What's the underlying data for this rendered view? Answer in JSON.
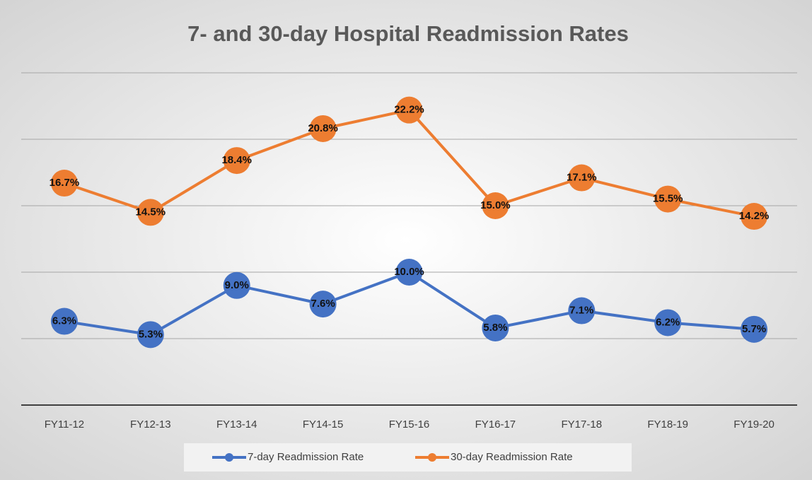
{
  "chart_data": {
    "type": "line",
    "title": "7- and 30-day Hospital Readmission Rates",
    "categories": [
      "FY11-12",
      "FY12-13",
      "FY13-14",
      "FY14-15",
      "FY15-16",
      "FY16-17",
      "FY17-18",
      "FY18-19",
      "FY19-20"
    ],
    "series": [
      {
        "name": "7-day Readmission Rate",
        "color": "#4472c4",
        "values": [
          6.3,
          5.3,
          9.0,
          7.6,
          10.0,
          5.8,
          7.1,
          6.2,
          5.7
        ],
        "value_labels": [
          "6.3%",
          "5.3%",
          "9.0%",
          "7.6%",
          "10.0%",
          "5.8%",
          "7.1%",
          "6.2%",
          "5.7%"
        ]
      },
      {
        "name": "30-day Readmission Rate",
        "color": "#ed7d31",
        "values": [
          16.7,
          14.5,
          18.4,
          20.8,
          22.2,
          15.0,
          17.1,
          15.5,
          14.2
        ],
        "value_labels": [
          "16.7%",
          "14.5%",
          "18.4%",
          "20.8%",
          "22.2%",
          "15.0%",
          "17.1%",
          "15.5%",
          "14.2%"
        ]
      }
    ],
    "ylim": [
      0,
      25
    ],
    "yticks": [
      0,
      5,
      10,
      15,
      20,
      25
    ],
    "grid": true,
    "show_ytick_labels": false,
    "legend": "bottom"
  }
}
